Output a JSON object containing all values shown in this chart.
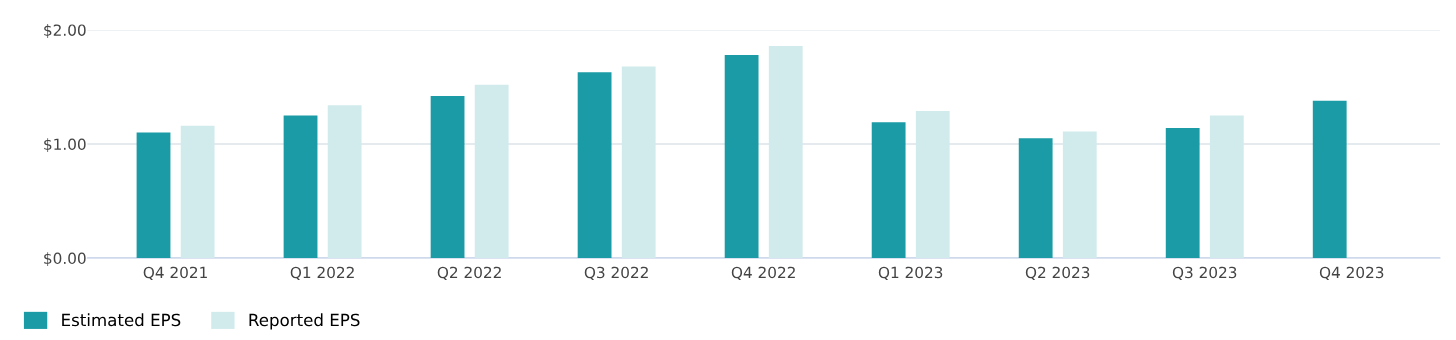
{
  "chart_data": {
    "type": "bar",
    "categories": [
      "Q4 2021",
      "Q1 2022",
      "Q2 2022",
      "Q3 2022",
      "Q4 2022",
      "Q1 2023",
      "Q2 2023",
      "Q3 2023",
      "Q4 2023"
    ],
    "series": [
      {
        "name": "Estimated EPS",
        "color": "#1a9ba5",
        "values": [
          1.1,
          1.25,
          1.42,
          1.63,
          1.78,
          1.19,
          1.05,
          1.14,
          1.38
        ]
      },
      {
        "name": "Reported EPS",
        "color": "#d1ebec",
        "values": [
          1.16,
          1.34,
          1.52,
          1.68,
          1.86,
          1.29,
          1.11,
          1.25,
          null
        ]
      }
    ],
    "ylim": [
      0,
      2
    ],
    "yticks": [
      {
        "value": 0,
        "label": "$0.00"
      },
      {
        "value": 1,
        "label": "$1.00"
      },
      {
        "value": 2,
        "label": "$2.00"
      }
    ],
    "grid": "y",
    "legend": "bottom left"
  }
}
